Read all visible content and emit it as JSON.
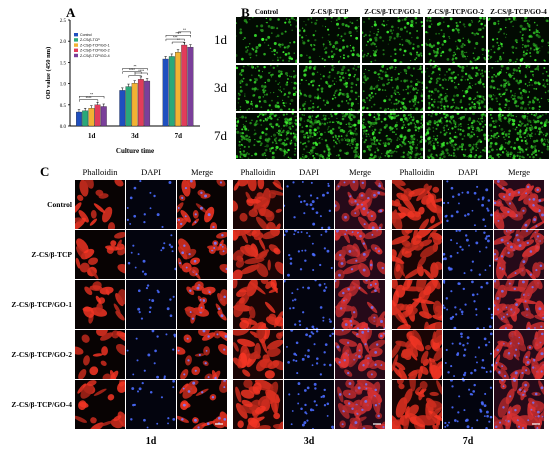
{
  "panels": {
    "a": "A",
    "b": "B",
    "c": "C"
  },
  "chart_data": {
    "type": "bar",
    "categories": [
      "1d",
      "3d",
      "7d"
    ],
    "series": [
      {
        "name": "Control",
        "color": "#1f4fbf",
        "values": [
          0.33,
          0.84,
          1.58
        ]
      },
      {
        "name": "Z-CS/β-TCP",
        "color": "#2aa87a",
        "values": [
          0.36,
          0.93,
          1.64
        ]
      },
      {
        "name": "Z-CS/β-TCP/GO-1",
        "color": "#f2b233",
        "values": [
          0.42,
          1.01,
          1.74
        ]
      },
      {
        "name": "Z-CS/β-TCP/GO-2",
        "color": "#e23c5a",
        "values": [
          0.5,
          1.1,
          1.91
        ]
      },
      {
        "name": "Z-CS/β-TCP/GO-4",
        "color": "#7a3f9a",
        "values": [
          0.46,
          1.06,
          1.86
        ]
      }
    ],
    "xlabel": "Culture time",
    "ylabel": "OD value (450 nm)",
    "ylim": [
      0,
      2.5
    ],
    "yticks": [
      "0.0",
      "0.5",
      "1.0",
      "1.5",
      "2.0",
      "2.5"
    ],
    "significance": [
      "****",
      "**",
      "****",
      "*",
      "**",
      "****",
      "***",
      "****",
      "**",
      "**"
    ],
    "legend_position": "top-left"
  },
  "panel_b": {
    "columns": [
      "Control",
      "Z-CS/β-TCP",
      "Z-CS/β-TCP/GO-1",
      "Z-CS/β-TCP/GO-2",
      "Z-CS/β-TCP/GO-4"
    ],
    "rows": [
      "1d",
      "3d",
      "7d"
    ],
    "density": [
      [
        0.25,
        0.3,
        0.35,
        0.4,
        0.38
      ],
      [
        0.45,
        0.5,
        0.55,
        0.6,
        0.58
      ],
      [
        0.85,
        0.9,
        0.92,
        0.95,
        0.93
      ]
    ]
  },
  "panel_c": {
    "stain_labels": [
      "Phalloidin",
      "DAPI",
      "Merge"
    ],
    "row_labels": [
      "Control",
      "Z-CS/β-TCP",
      "Z-CS/β-TCP/GO-1",
      "Z-CS/β-TCP/GO-2",
      "Z-CS/β-TCP/GO-4"
    ],
    "time_labels": [
      "1d",
      "3d",
      "7d"
    ],
    "cell_density": [
      0.35,
      0.75,
      0.95
    ]
  }
}
